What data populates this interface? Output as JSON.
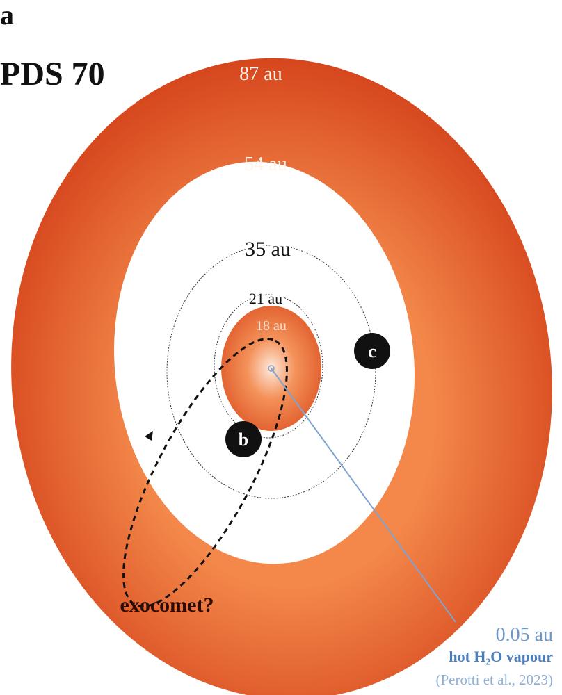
{
  "panel_letter": "a",
  "title": "PDS 70",
  "rings": {
    "outer": "87 au",
    "gap_edge": "54 au",
    "orbit_c": "35 au",
    "orbit_b": "21 au",
    "inner_disk": "18 au"
  },
  "planets": {
    "c": "c",
    "b": "b"
  },
  "comet_label": "exocomet?",
  "water": {
    "distance": "0.05 au",
    "label": "hot H₂O vapour",
    "reference": "(Perotti et al., 2023)"
  }
}
